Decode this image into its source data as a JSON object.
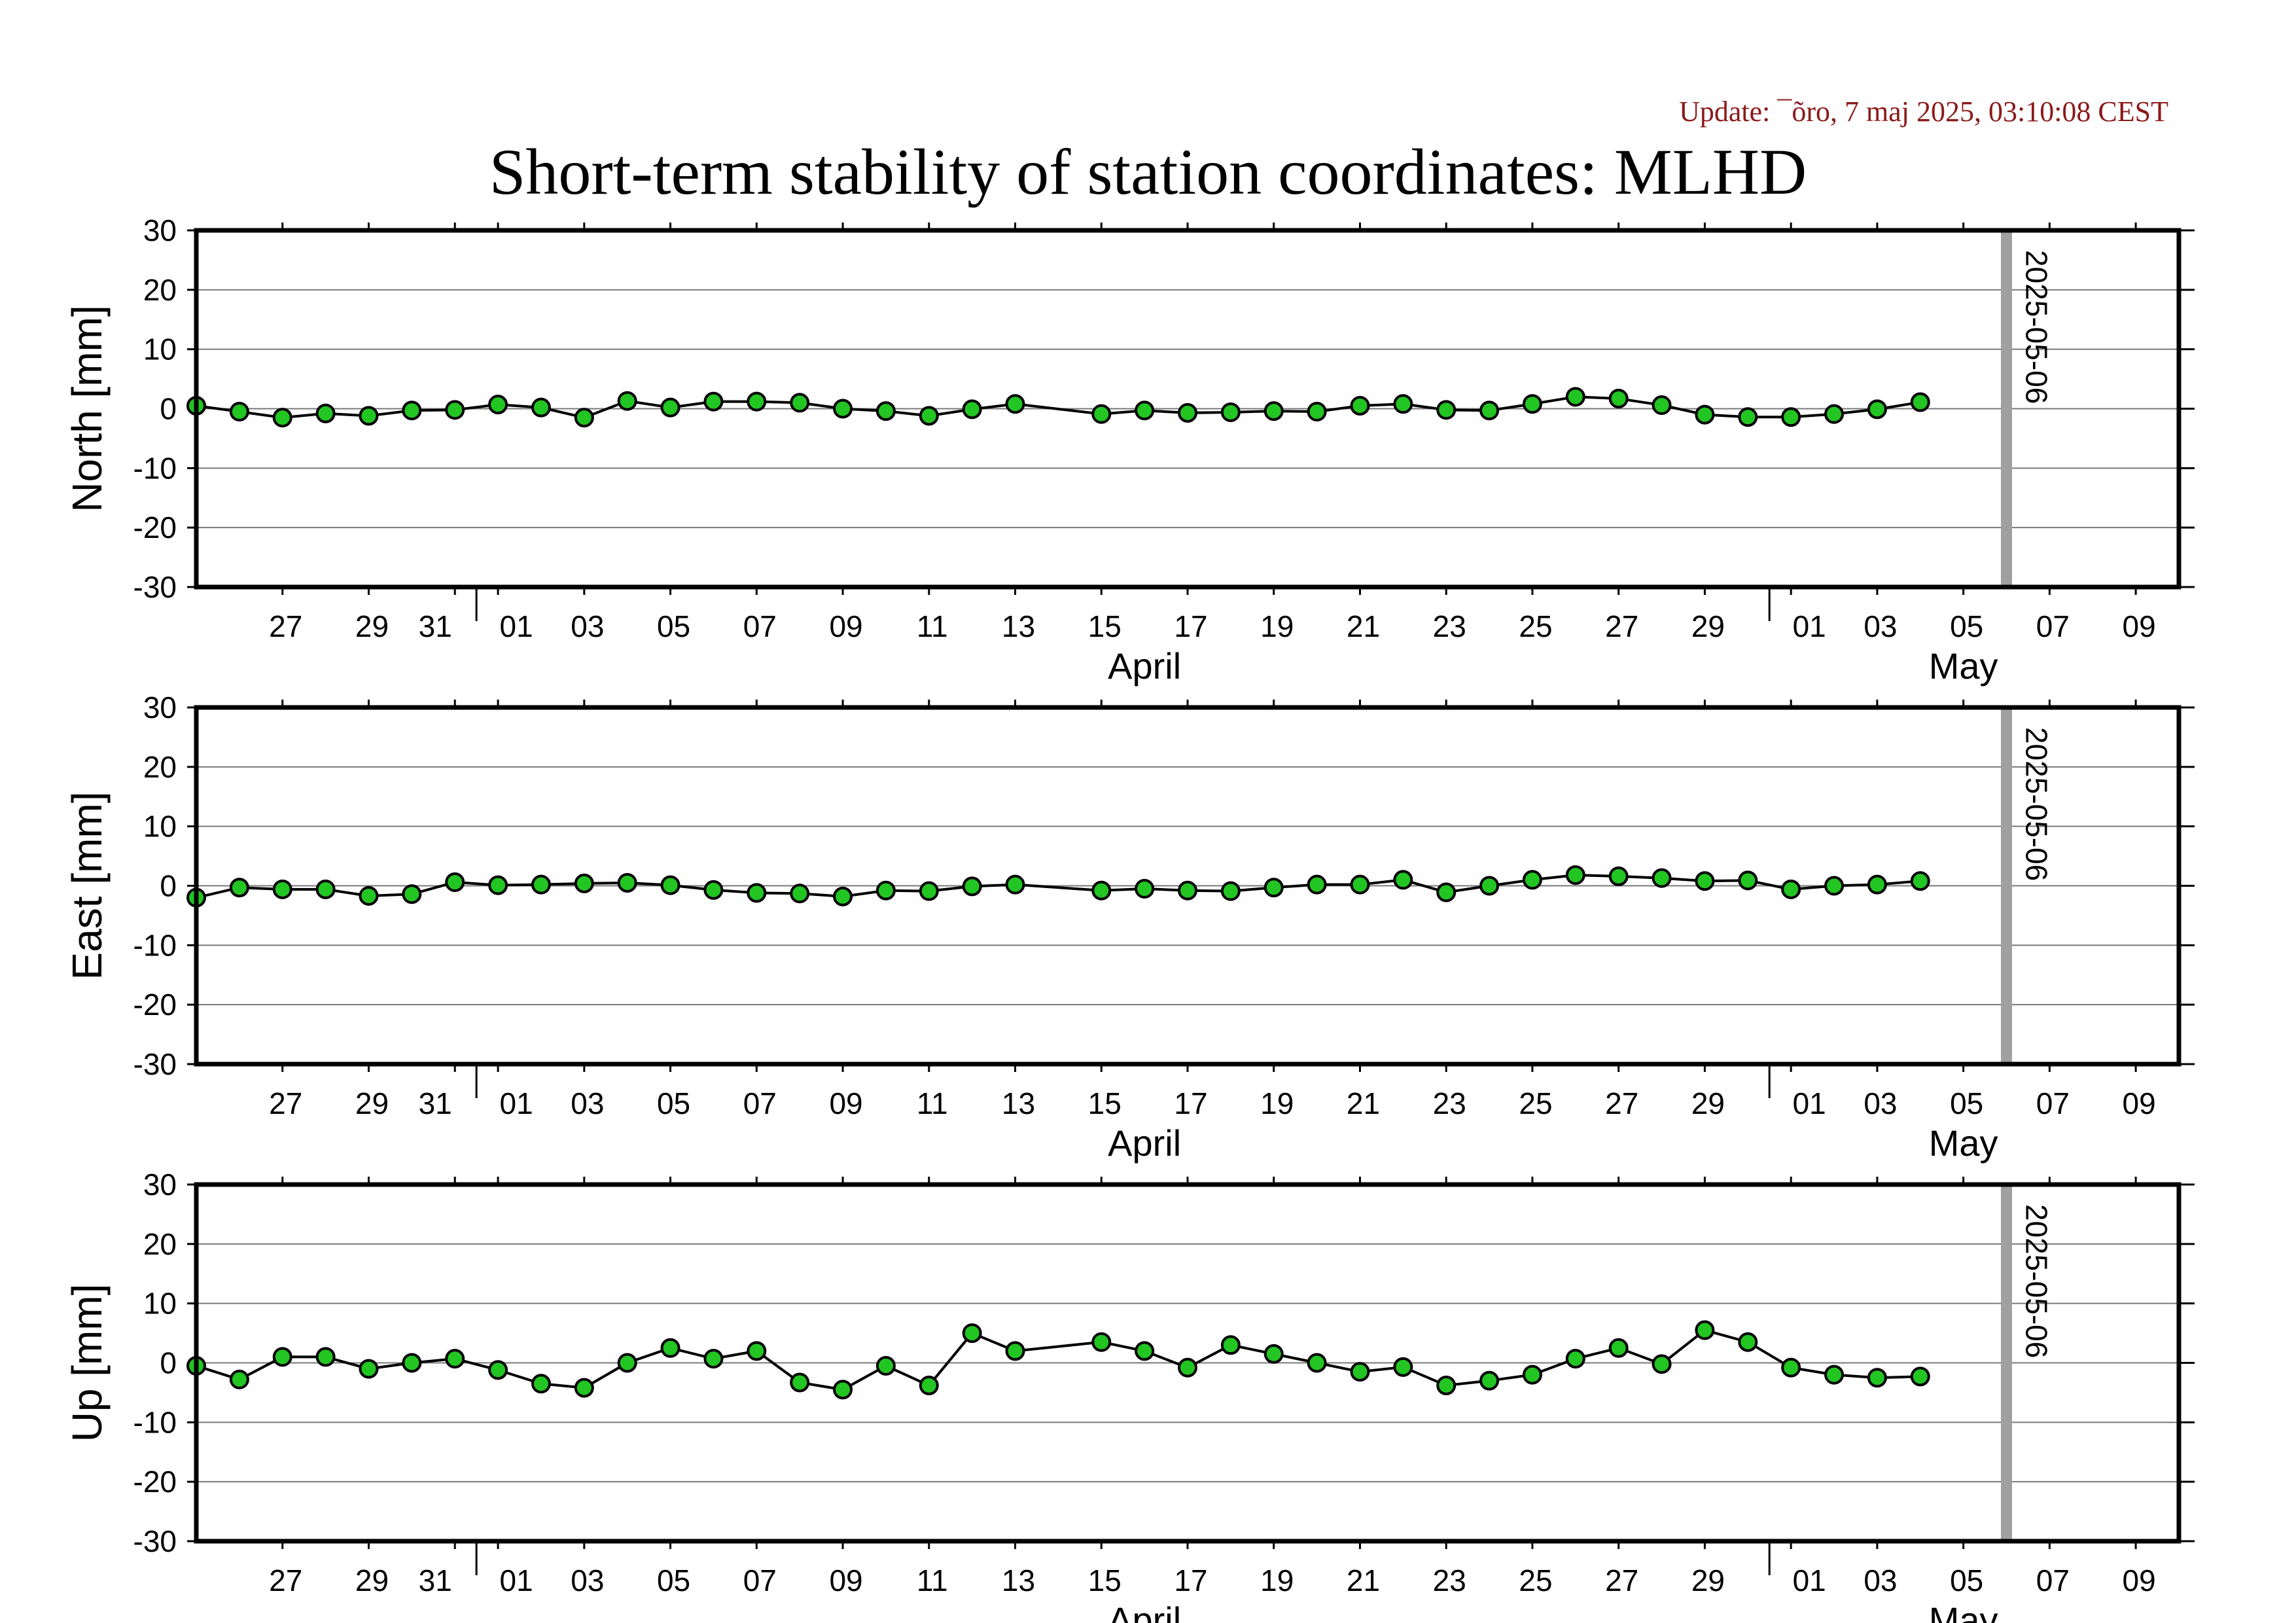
{
  "update_text": "Update: ¯õro, 7 maj 2025, 03:10:08 CEST",
  "title": "Short-term stability of station coordinates: MLHD",
  "chart_data": {
    "type": "line",
    "title": "Short-term stability of station coordinates: MLHD",
    "x_axis": {
      "range": [
        "2025-03-25",
        "2025-05-10"
      ],
      "tick_labels": [
        "27",
        "29",
        "31",
        "01",
        "03",
        "05",
        "07",
        "09",
        "11",
        "13",
        "15",
        "17",
        "19",
        "21",
        "23",
        "25",
        "27",
        "29",
        "01",
        "03",
        "05",
        "07",
        "09"
      ],
      "tick_dates": [
        "2025-03-27",
        "2025-03-29",
        "2025-03-31",
        "2025-04-01",
        "2025-04-03",
        "2025-04-05",
        "2025-04-07",
        "2025-04-09",
        "2025-04-11",
        "2025-04-13",
        "2025-04-15",
        "2025-04-17",
        "2025-04-19",
        "2025-04-21",
        "2025-04-23",
        "2025-04-25",
        "2025-04-27",
        "2025-04-29",
        "2025-05-01",
        "2025-05-03",
        "2025-05-05",
        "2025-05-07",
        "2025-05-09"
      ],
      "month_labels": [
        {
          "label": "April",
          "date": "2025-04-16"
        },
        {
          "label": "May",
          "date": "2025-05-05"
        }
      ],
      "month_boundaries": [
        "2025-04-01",
        "2025-05-01"
      ]
    },
    "y_ticks": [
      30,
      20,
      10,
      0,
      -10,
      -20,
      -30
    ],
    "ylim": [
      -30,
      30
    ],
    "grid": true,
    "marker_color": "#22c522",
    "reference_line": {
      "date": "2025-05-06",
      "label": "2025-05-06",
      "color": "#a0a0a0"
    },
    "panels": [
      {
        "name": "north",
        "ylabel": "North [mm]",
        "points": [
          [
            "2025-03-25",
            0.5
          ],
          [
            "2025-03-26",
            -0.5
          ],
          [
            "2025-03-27",
            -1.5
          ],
          [
            "2025-03-28",
            -0.8
          ],
          [
            "2025-03-29",
            -1.2
          ],
          [
            "2025-03-30",
            -0.3
          ],
          [
            "2025-03-31",
            -0.2
          ],
          [
            "2025-04-01",
            0.7
          ],
          [
            "2025-04-02",
            0.2
          ],
          [
            "2025-04-03",
            -1.5
          ],
          [
            "2025-04-04",
            1.3
          ],
          [
            "2025-04-05",
            0.2
          ],
          [
            "2025-04-06",
            1.2
          ],
          [
            "2025-04-07",
            1.2
          ],
          [
            "2025-04-08",
            1.0
          ],
          [
            "2025-04-09",
            0.0
          ],
          [
            "2025-04-10",
            -0.4
          ],
          [
            "2025-04-11",
            -1.2
          ],
          [
            "2025-04-12",
            -0.1
          ],
          [
            "2025-04-13",
            0.8
          ],
          [
            "2025-04-15",
            -0.9
          ],
          [
            "2025-04-16",
            -0.3
          ],
          [
            "2025-04-17",
            -0.7
          ],
          [
            "2025-04-18",
            -0.6
          ],
          [
            "2025-04-19",
            -0.4
          ],
          [
            "2025-04-20",
            -0.5
          ],
          [
            "2025-04-21",
            0.5
          ],
          [
            "2025-04-22",
            0.8
          ],
          [
            "2025-04-23",
            -0.2
          ],
          [
            "2025-04-24",
            -0.3
          ],
          [
            "2025-04-25",
            0.8
          ],
          [
            "2025-04-26",
            2.0
          ],
          [
            "2025-04-27",
            1.7
          ],
          [
            "2025-04-28",
            0.6
          ],
          [
            "2025-04-29",
            -1.0
          ],
          [
            "2025-04-30",
            -1.4
          ],
          [
            "2025-05-01",
            -1.4
          ],
          [
            "2025-05-02",
            -0.9
          ],
          [
            "2025-05-03",
            -0.1
          ],
          [
            "2025-05-04",
            1.1
          ]
        ]
      },
      {
        "name": "east",
        "ylabel": "East [mm]",
        "points": [
          [
            "2025-03-25",
            -2.0
          ],
          [
            "2025-03-26",
            -0.3
          ],
          [
            "2025-03-27",
            -0.6
          ],
          [
            "2025-03-28",
            -0.6
          ],
          [
            "2025-03-29",
            -1.7
          ],
          [
            "2025-03-30",
            -1.4
          ],
          [
            "2025-03-31",
            0.6
          ],
          [
            "2025-04-01",
            0.1
          ],
          [
            "2025-04-02",
            0.2
          ],
          [
            "2025-04-03",
            0.4
          ],
          [
            "2025-04-04",
            0.5
          ],
          [
            "2025-04-05",
            0.1
          ],
          [
            "2025-04-06",
            -0.7
          ],
          [
            "2025-04-07",
            -1.2
          ],
          [
            "2025-04-08",
            -1.3
          ],
          [
            "2025-04-09",
            -1.8
          ],
          [
            "2025-04-10",
            -0.8
          ],
          [
            "2025-04-11",
            -0.9
          ],
          [
            "2025-04-12",
            -0.1
          ],
          [
            "2025-04-13",
            0.2
          ],
          [
            "2025-04-15",
            -0.8
          ],
          [
            "2025-04-16",
            -0.5
          ],
          [
            "2025-04-17",
            -0.8
          ],
          [
            "2025-04-18",
            -0.9
          ],
          [
            "2025-04-19",
            -0.3
          ],
          [
            "2025-04-20",
            0.2
          ],
          [
            "2025-04-21",
            0.2
          ],
          [
            "2025-04-22",
            1.0
          ],
          [
            "2025-04-23",
            -1.1
          ],
          [
            "2025-04-24",
            0.0
          ],
          [
            "2025-04-25",
            1.0
          ],
          [
            "2025-04-26",
            1.8
          ],
          [
            "2025-04-27",
            1.6
          ],
          [
            "2025-04-28",
            1.3
          ],
          [
            "2025-04-29",
            0.8
          ],
          [
            "2025-04-30",
            0.9
          ],
          [
            "2025-05-01",
            -0.6
          ],
          [
            "2025-05-02",
            0.0
          ],
          [
            "2025-05-03",
            0.2
          ],
          [
            "2025-05-04",
            0.8
          ]
        ]
      },
      {
        "name": "up",
        "ylabel": "Up [mm]",
        "points": [
          [
            "2025-03-25",
            -0.5
          ],
          [
            "2025-03-26",
            -2.8
          ],
          [
            "2025-03-27",
            1.0
          ],
          [
            "2025-03-28",
            1.0
          ],
          [
            "2025-03-29",
            -1.0
          ],
          [
            "2025-03-30",
            0.0
          ],
          [
            "2025-03-31",
            0.7
          ],
          [
            "2025-04-01",
            -1.2
          ],
          [
            "2025-04-02",
            -3.5
          ],
          [
            "2025-04-03",
            -4.2
          ],
          [
            "2025-04-04",
            0.0
          ],
          [
            "2025-04-05",
            2.5
          ],
          [
            "2025-04-06",
            0.7
          ],
          [
            "2025-04-07",
            2.0
          ],
          [
            "2025-04-08",
            -3.3
          ],
          [
            "2025-04-09",
            -4.5
          ],
          [
            "2025-04-10",
            -0.5
          ],
          [
            "2025-04-11",
            -3.8
          ],
          [
            "2025-04-12",
            5.0
          ],
          [
            "2025-04-13",
            2.0
          ],
          [
            "2025-04-15",
            3.5
          ],
          [
            "2025-04-16",
            2.0
          ],
          [
            "2025-04-17",
            -0.8
          ],
          [
            "2025-04-18",
            3.0
          ],
          [
            "2025-04-19",
            1.5
          ],
          [
            "2025-04-20",
            0.0
          ],
          [
            "2025-04-21",
            -1.5
          ],
          [
            "2025-04-22",
            -0.7
          ],
          [
            "2025-04-23",
            -3.8
          ],
          [
            "2025-04-24",
            -3.0
          ],
          [
            "2025-04-25",
            -2.0
          ],
          [
            "2025-04-26",
            0.7
          ],
          [
            "2025-04-27",
            2.5
          ],
          [
            "2025-04-28",
            -0.2
          ],
          [
            "2025-04-29",
            5.5
          ],
          [
            "2025-04-30",
            3.5
          ],
          [
            "2025-05-01",
            -0.8
          ],
          [
            "2025-05-02",
            -2.0
          ],
          [
            "2025-05-03",
            -2.5
          ],
          [
            "2025-05-04",
            -2.3
          ]
        ]
      }
    ]
  }
}
